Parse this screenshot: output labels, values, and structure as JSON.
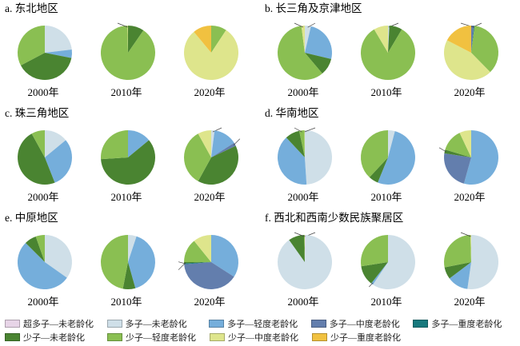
{
  "legend": {
    "categories": [
      {
        "key": "cdz_none",
        "label": "超多子—未老龄化",
        "color": "#e7d4e7"
      },
      {
        "key": "dz_none",
        "label": "多子—未老龄化",
        "color": "#cfdfe8"
      },
      {
        "key": "dz_light",
        "label": "多子—轻度老龄化",
        "color": "#75aedb"
      },
      {
        "key": "dz_mid",
        "label": "多子—中度老龄化",
        "color": "#637ead"
      },
      {
        "key": "dz_severe",
        "label": "多子—重度老龄化",
        "color": "#17797d"
      },
      {
        "key": "sz_none",
        "label": "少子—未老龄化",
        "color": "#4a8431"
      },
      {
        "key": "sz_light",
        "label": "少子—轻度老龄化",
        "color": "#8abf52"
      },
      {
        "key": "sz_mid",
        "label": "少子—中度老龄化",
        "color": "#dee58c"
      },
      {
        "key": "sz_severe",
        "label": "少子—重度老龄化",
        "color": "#f1c140"
      }
    ],
    "rows": [
      [
        "cdz_none",
        "dz_none",
        "dz_light",
        "dz_mid",
        "dz_severe"
      ],
      [
        "sz_none",
        "sz_light",
        "sz_mid",
        "sz_severe"
      ]
    ]
  },
  "chart_data": {
    "type": "pie",
    "note": "18 pies: 6 regions x 3 census years; slices ordered clockwise from 12 o'clock",
    "panels": [
      {
        "id": "a",
        "title": "a. 东北地区",
        "pies": [
          {
            "year": "2000年",
            "slices": [
              {
                "category": "dz_none",
                "value": 23.13,
                "label": "23.13%"
              },
              {
                "category": "dz_light",
                "value": 4.98,
                "label": "4.98%"
              },
              {
                "category": "sz_none",
                "value": 39.15,
                "label": "39.15%"
              },
              {
                "category": "sz_light",
                "value": 32.74,
                "label": "32.74%"
              }
            ]
          },
          {
            "year": "2010年",
            "slices": [
              {
                "category": "sz_none",
                "value": 9.61,
                "label": "9.61%"
              },
              {
                "category": "sz_light",
                "value": 90.03,
                "label": "90.03%"
              },
              {
                "category": "sz_mid",
                "value": 0.36,
                "label": "0.36%"
              }
            ]
          },
          {
            "year": "2020年",
            "slices": [
              {
                "category": "sz_light",
                "value": 9.25,
                "label": "9.25%"
              },
              {
                "category": "sz_mid",
                "value": 79.72,
                "label": "79.72%"
              },
              {
                "category": "sz_severe",
                "value": 11.03,
                "label": "11.03%"
              }
            ]
          }
        ]
      },
      {
        "id": "b",
        "title": "b. 长三角及京津地区",
        "pies": [
          {
            "year": "2000年",
            "slices": [
              {
                "category": "dz_none",
                "value": 3.64,
                "label": "3.64%"
              },
              {
                "category": "dz_light",
                "value": 25.09,
                "label": "25.09%"
              },
              {
                "category": "sz_none",
                "value": 10.12,
                "label": "10.12%"
              },
              {
                "category": "sz_light",
                "value": 59.13,
                "label": "59.13%"
              },
              {
                "category": "sz_mid",
                "value": 2.02,
                "label": "2.02%"
              }
            ]
          },
          {
            "year": "2010年",
            "slices": [
              {
                "category": "dz_none",
                "value": 0.81,
                "label": "0.81%"
              },
              {
                "category": "sz_none",
                "value": 7.69,
                "label": "7.69%"
              },
              {
                "category": "sz_light",
                "value": 82.99,
                "label": "82.99%"
              },
              {
                "category": "sz_mid",
                "value": 8.51,
                "label": "8.51%"
              }
            ]
          },
          {
            "year": "2020年",
            "slices": [
              {
                "category": "dz_mid",
                "value": 1.62,
                "label": "1.62%"
              },
              {
                "category": "dz_severe",
                "value": 0.41,
                "label": "0.41%"
              },
              {
                "category": "sz_light",
                "value": 35.62,
                "label": "35.62%"
              },
              {
                "category": "sz_mid",
                "value": 44.94,
                "label": "44.94%"
              },
              {
                "category": "sz_severe",
                "value": 17.41,
                "label": "17.41%"
              }
            ]
          }
        ]
      },
      {
        "id": "c",
        "title": "c. 珠三角地区",
        "pies": [
          {
            "year": "2000年",
            "slices": [
              {
                "category": "dz_none",
                "value": 14,
                "label": "14%"
              },
              {
                "category": "dz_light",
                "value": 30,
                "label": "30%"
              },
              {
                "category": "sz_none",
                "value": 48,
                "label": "48%"
              },
              {
                "category": "sz_light",
                "value": 8,
                "label": "8%"
              }
            ]
          },
          {
            "year": "2010年",
            "slices": [
              {
                "category": "dz_light",
                "value": 14,
                "label": "14%"
              },
              {
                "category": "sz_none",
                "value": 60,
                "label": "60%"
              },
              {
                "category": "sz_light",
                "value": 26,
                "label": "26%"
              }
            ]
          },
          {
            "year": "2020年",
            "slices": [
              {
                "category": "dz_none",
                "value": 2,
                "label": "2%"
              },
              {
                "category": "dz_light",
                "value": 14,
                "label": "14%"
              },
              {
                "category": "dz_mid",
                "value": 2,
                "label": "2%"
              },
              {
                "category": "sz_none",
                "value": 40,
                "label": "40%"
              },
              {
                "category": "sz_light",
                "value": 34,
                "label": "34%"
              },
              {
                "category": "sz_mid",
                "value": 8,
                "label": "8%"
              }
            ]
          }
        ]
      },
      {
        "id": "d",
        "title": "d. 华南地区",
        "pies": [
          {
            "year": "2000年",
            "slices": [
              {
                "category": "dz_none",
                "value": 48.97,
                "label": "48.97%"
              },
              {
                "category": "dz_light",
                "value": 39.09,
                "label": "39.09%"
              },
              {
                "category": "sz_none",
                "value": 8.64,
                "label": "8.64%"
              },
              {
                "category": "sz_light",
                "value": 3.09,
                "label": "3.09%"
              },
              {
                "category": "sz_mid",
                "value": 0.21,
                "label": "0.21%"
              }
            ]
          },
          {
            "year": "2010年",
            "slices": [
              {
                "category": "dz_none",
                "value": 4.12,
                "label": "4.12%"
              },
              {
                "category": "dz_light",
                "value": 52.05,
                "label": "52.05%"
              },
              {
                "category": "sz_none",
                "value": 5.76,
                "label": "5.76%"
              },
              {
                "category": "sz_light",
                "value": 38.07,
                "label": "38.07%"
              }
            ]
          },
          {
            "year": "2020年",
            "slices": [
              {
                "category": "dz_light",
                "value": 54.33,
                "label": "54.33%"
              },
              {
                "category": "dz_mid",
                "value": 23.05,
                "label": "23.05%"
              },
              {
                "category": "sz_none",
                "value": 2.26,
                "label": "2.26%"
              },
              {
                "category": "sz_light",
                "value": 13.37,
                "label": "13.37%"
              },
              {
                "category": "sz_mid",
                "value": 6.99,
                "label": "6.99%"
              }
            ]
          }
        ]
      },
      {
        "id": "e",
        "title": "e. 中原地区",
        "pies": [
          {
            "year": "2000年",
            "slices": [
              {
                "category": "dz_none",
                "value": 34.81,
                "label": "34.81%"
              },
              {
                "category": "dz_light",
                "value": 52.69,
                "label": "52.69%"
              },
              {
                "category": "sz_none",
                "value": 7.09,
                "label": "7.09%"
              },
              {
                "category": "sz_light",
                "value": 5.41,
                "label": "5.41%"
              }
            ]
          },
          {
            "year": "2010年",
            "slices": [
              {
                "category": "dz_none",
                "value": 5.07,
                "label": "5.07%"
              },
              {
                "category": "dz_light",
                "value": 40.54,
                "label": "40.54%"
              },
              {
                "category": "sz_none",
                "value": 7.43,
                "label": "7.43%"
              },
              {
                "category": "sz_light",
                "value": 46.96,
                "label": "46.96%"
              }
            ]
          },
          {
            "year": "2020年",
            "slices": [
              {
                "category": "dz_light",
                "value": 34.12,
                "label": "34.12%"
              },
              {
                "category": "dz_mid",
                "value": 39.52,
                "label": "39.52%"
              },
              {
                "category": "dz_severe",
                "value": 0.68,
                "label": "0.68%"
              },
              {
                "category": "sz_none",
                "value": 0.68,
                "label": "0.68%"
              },
              {
                "category": "sz_light",
                "value": 14.19,
                "label": "14.19%"
              },
              {
                "category": "sz_mid",
                "value": 10.81,
                "label": "10.81%"
              }
            ]
          }
        ]
      },
      {
        "id": "f",
        "title": "f. 西北和西南少数民族聚居区",
        "pies": [
          {
            "year": "2000年",
            "slices": [
              {
                "category": "cdz_none",
                "value": 0.45,
                "label": "0.45%"
              },
              {
                "category": "dz_none",
                "value": 89.72,
                "label": "89.72%"
              },
              {
                "category": "sz_none",
                "value": 9.38,
                "label": "9.38%"
              },
              {
                "category": "sz_light",
                "value": 0.45,
                "label": "0.45%"
              }
            ]
          },
          {
            "year": "2010年",
            "slices": [
              {
                "category": "dz_none",
                "value": 64.73,
                "label": "64.73%"
              },
              {
                "category": "dz_light",
                "value": 1.34,
                "label": "1.34%"
              },
              {
                "category": "sz_none",
                "value": 12.96,
                "label": "12.96%"
              },
              {
                "category": "sz_light",
                "value": 29.97,
                "label": "29.97%"
              }
            ]
          },
          {
            "year": "2020年",
            "slices": [
              {
                "category": "dz_none",
                "value": 52.24,
                "label": "52.24%"
              },
              {
                "category": "dz_light",
                "value": 12.49,
                "label": "12.49%"
              },
              {
                "category": "sz_none",
                "value": 7.14,
                "label": "7.14%"
              },
              {
                "category": "sz_light",
                "value": 27.68,
                "label": "27.68%"
              },
              {
                "category": "sz_mid",
                "value": 0.45,
                "label": "0.45%"
              }
            ]
          }
        ]
      }
    ]
  }
}
